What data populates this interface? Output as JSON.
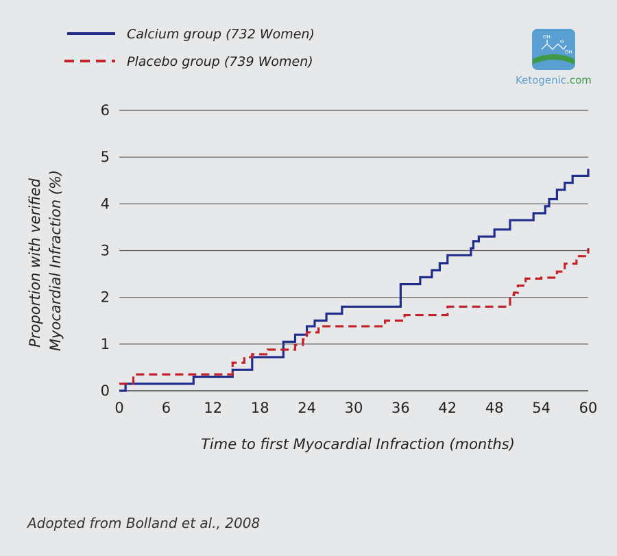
{
  "chart_data": {
    "type": "line",
    "xlabel": "Time to first Myocardial Infraction (months)",
    "ylabel": [
      "Proportion with verified",
      "Myocardial Infraction (%)"
    ],
    "xlim": [
      0,
      60
    ],
    "ylim": [
      0,
      6
    ],
    "xticks": [
      0,
      6,
      12,
      18,
      24,
      30,
      36,
      42,
      48,
      54,
      60
    ],
    "yticks": [
      0,
      1,
      2,
      3,
      4,
      5,
      6
    ],
    "grid": true,
    "legend_position": "top-left",
    "series": [
      {
        "name": "Calcium group (732 Women)",
        "color": "#1f2d8c",
        "style": "solid",
        "step": true,
        "x": [
          0,
          0.8,
          9.5,
          14.5,
          17,
          21,
          22.5,
          24,
          25,
          26.5,
          28.5,
          36,
          38.5,
          40,
          41,
          42,
          45,
          45.3,
          46,
          48,
          50,
          53,
          54.5,
          55,
          56,
          57,
          58,
          60
        ],
        "y": [
          0,
          0.15,
          0.3,
          0.45,
          0.72,
          1.05,
          1.2,
          1.38,
          1.5,
          1.65,
          1.8,
          2.28,
          2.43,
          2.58,
          2.73,
          2.9,
          3.05,
          3.2,
          3.3,
          3.45,
          3.65,
          3.8,
          3.95,
          4.1,
          4.3,
          4.45,
          4.6,
          4.75
        ]
      },
      {
        "name": "Placebo group (739 Women)",
        "color": "#c4222b",
        "style": "dashed",
        "step": true,
        "x": [
          0,
          1.8,
          14.5,
          16,
          17,
          19,
          22.5,
          23.5,
          24,
          25.5,
          34,
          36.5,
          42,
          50,
          50.5,
          51,
          52,
          54,
          56,
          57,
          58.5,
          60
        ],
        "y": [
          0.15,
          0.35,
          0.6,
          0.72,
          0.78,
          0.88,
          0.98,
          1.1,
          1.25,
          1.38,
          1.5,
          1.62,
          1.8,
          2.05,
          2.1,
          2.25,
          2.4,
          2.42,
          2.55,
          2.72,
          2.88,
          3.05
        ]
      }
    ]
  },
  "brand": {
    "name": "Ketogenic",
    "suffix": ".com",
    "logo_oh": "OH",
    "logo_o": "O",
    "logo_oh2": "OH"
  },
  "caption": "Adopted from Bolland et al., 2008"
}
